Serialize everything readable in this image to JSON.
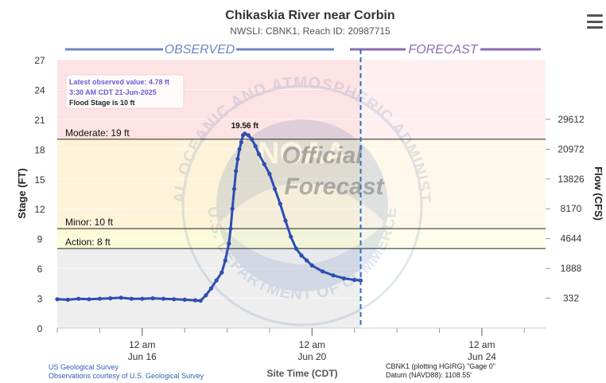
{
  "header": {
    "title": "Chikaskia River near Corbin",
    "subtitle": "NWSLI: CBNK1, Reach ID: 20987715",
    "menu_icon": "hamburger-menu-icon"
  },
  "sections": {
    "observed_label": "OBSERVED",
    "forecast_label": "FORECAST",
    "observed_color": "#6f86c4",
    "forecast_color": "#8e6bb0"
  },
  "info_box": {
    "line1": "Latest observed value: 4.78 ft",
    "line2": "3:30 AM CDT 21-Jun-2025",
    "line3": "Flood Stage is 10 ft"
  },
  "watermark": {
    "ring_text": "NATIONAL OCEANIC AND ATMOSPHERIC ADMINISTRATION",
    "bottom_text": "U.S. DEPARTMENT OF COMMERCE",
    "center_text": "NOAA",
    "stamp_line1": "Official",
    "stamp_line2": "Forecast"
  },
  "footer": {
    "source1": "US Geological Survey",
    "source2": "Observations courtesy of U.S. Geological Survey",
    "xlabel": "Site Time (CDT)",
    "datum1": "CBNK1 (plotting HGIRG) \"Gage 0\"",
    "datum2": "Datum (NAVD88): 1108.55'"
  },
  "chart_data": {
    "type": "line",
    "title": "Chikaskia River near Corbin",
    "subtitle": "NWSLI: CBNK1, Reach ID: 20987715",
    "ylabel": "Stage (FT)",
    "y2label": "Flow (CFS)",
    "xlabel": "Site Time (CDT)",
    "ylim": [
      0,
      27
    ],
    "xlim": [
      "2025-06-14T00:00",
      "2025-06-25T12:00"
    ],
    "yticks": [
      0,
      3,
      6,
      9,
      12,
      15,
      18,
      21,
      24,
      27
    ],
    "flow_ticks": [
      {
        "stage": 3,
        "label": "332"
      },
      {
        "stage": 6,
        "label": "1888"
      },
      {
        "stage": 9,
        "label": "4644"
      },
      {
        "stage": 12,
        "label": "8170"
      },
      {
        "stage": 15,
        "label": "13826"
      },
      {
        "stage": 18,
        "label": "20972"
      },
      {
        "stage": 21,
        "label": "29612"
      }
    ],
    "xticks": [
      {
        "t": "2025-06-16T00:00",
        "label1": "12 am",
        "label2": "Jun 16"
      },
      {
        "t": "2025-06-20T00:00",
        "label1": "12 am",
        "label2": "Jun 20"
      },
      {
        "t": "2025-06-24T00:00",
        "label1": "12 am",
        "label2": "Jun 24"
      }
    ],
    "thresholds": [
      {
        "name": "Moderate",
        "label": "Moderate: 19 ft",
        "value": 19
      },
      {
        "name": "Minor",
        "label": "Minor: 10 ft",
        "value": 10
      },
      {
        "name": "Action",
        "label": "Action: 8 ft",
        "value": 8
      }
    ],
    "bands": [
      {
        "from": 0,
        "to": 8,
        "color": "#eeeeee"
      },
      {
        "from": 8,
        "to": 10,
        "color": "#fbfbd9"
      },
      {
        "from": 10,
        "to": 19,
        "color": "#fdf3d9"
      },
      {
        "from": 19,
        "to": 27,
        "color": "#fde3e3"
      }
    ],
    "grid": true,
    "series": [
      {
        "color": "#2d4eb0",
        "points": [
          [
            "2025-06-14T00:00",
            2.9
          ],
          [
            "2025-06-14T06:00",
            2.85
          ],
          [
            "2025-06-14T12:00",
            2.95
          ],
          [
            "2025-06-14T18:00",
            2.9
          ],
          [
            "2025-06-15T00:00",
            2.95
          ],
          [
            "2025-06-15T06:00",
            3.0
          ],
          [
            "2025-06-15T12:00",
            3.05
          ],
          [
            "2025-06-15T18:00",
            2.95
          ],
          [
            "2025-06-16T00:00",
            2.95
          ],
          [
            "2025-06-16T06:00",
            3.0
          ],
          [
            "2025-06-16T12:00",
            2.95
          ],
          [
            "2025-06-16T18:00",
            2.9
          ],
          [
            "2025-06-17T00:00",
            2.85
          ],
          [
            "2025-06-17T06:00",
            2.8
          ],
          [
            "2025-06-17T09:00",
            2.75
          ],
          [
            "2025-06-17T12:00",
            3.3
          ],
          [
            "2025-06-17T15:00",
            4.0
          ],
          [
            "2025-06-17T18:00",
            4.8
          ],
          [
            "2025-06-17T21:00",
            5.6
          ],
          [
            "2025-06-17T23:00",
            6.8
          ],
          [
            "2025-06-18T01:00",
            8.5
          ],
          [
            "2025-06-18T02:00",
            10.0
          ],
          [
            "2025-06-18T03:00",
            12.0
          ],
          [
            "2025-06-18T04:00",
            14.0
          ],
          [
            "2025-06-18T05:00",
            15.8
          ],
          [
            "2025-06-18T06:00",
            17.0
          ],
          [
            "2025-06-18T07:00",
            18.0
          ],
          [
            "2025-06-18T08:00",
            18.7
          ],
          [
            "2025-06-18T09:00",
            19.4
          ],
          [
            "2025-06-18T10:00",
            19.56
          ],
          [
            "2025-06-18T12:00",
            19.4
          ],
          [
            "2025-06-18T14:00",
            19.0
          ],
          [
            "2025-06-18T16:00",
            18.3
          ],
          [
            "2025-06-18T18:00",
            17.5
          ],
          [
            "2025-06-18T21:00",
            16.5
          ],
          [
            "2025-06-19T00:00",
            15.5
          ],
          [
            "2025-06-19T03:00",
            14.0
          ],
          [
            "2025-06-19T06:00",
            12.5
          ],
          [
            "2025-06-19T09:00",
            10.8
          ],
          [
            "2025-06-19T12:00",
            9.2
          ],
          [
            "2025-06-19T15:00",
            8.0
          ],
          [
            "2025-06-19T18:00",
            7.3
          ],
          [
            "2025-06-19T21:00",
            6.8
          ],
          [
            "2025-06-20T00:00",
            6.3
          ],
          [
            "2025-06-20T06:00",
            5.7
          ],
          [
            "2025-06-20T12:00",
            5.3
          ],
          [
            "2025-06-20T18:00",
            5.0
          ],
          [
            "2025-06-21T00:00",
            4.85
          ],
          [
            "2025-06-21T03:30",
            4.78
          ]
        ]
      }
    ],
    "peak": {
      "t": "2025-06-18T10:00",
      "value": 19.56,
      "label": "19.56 ft"
    },
    "now": "2025-06-21T03:30"
  }
}
